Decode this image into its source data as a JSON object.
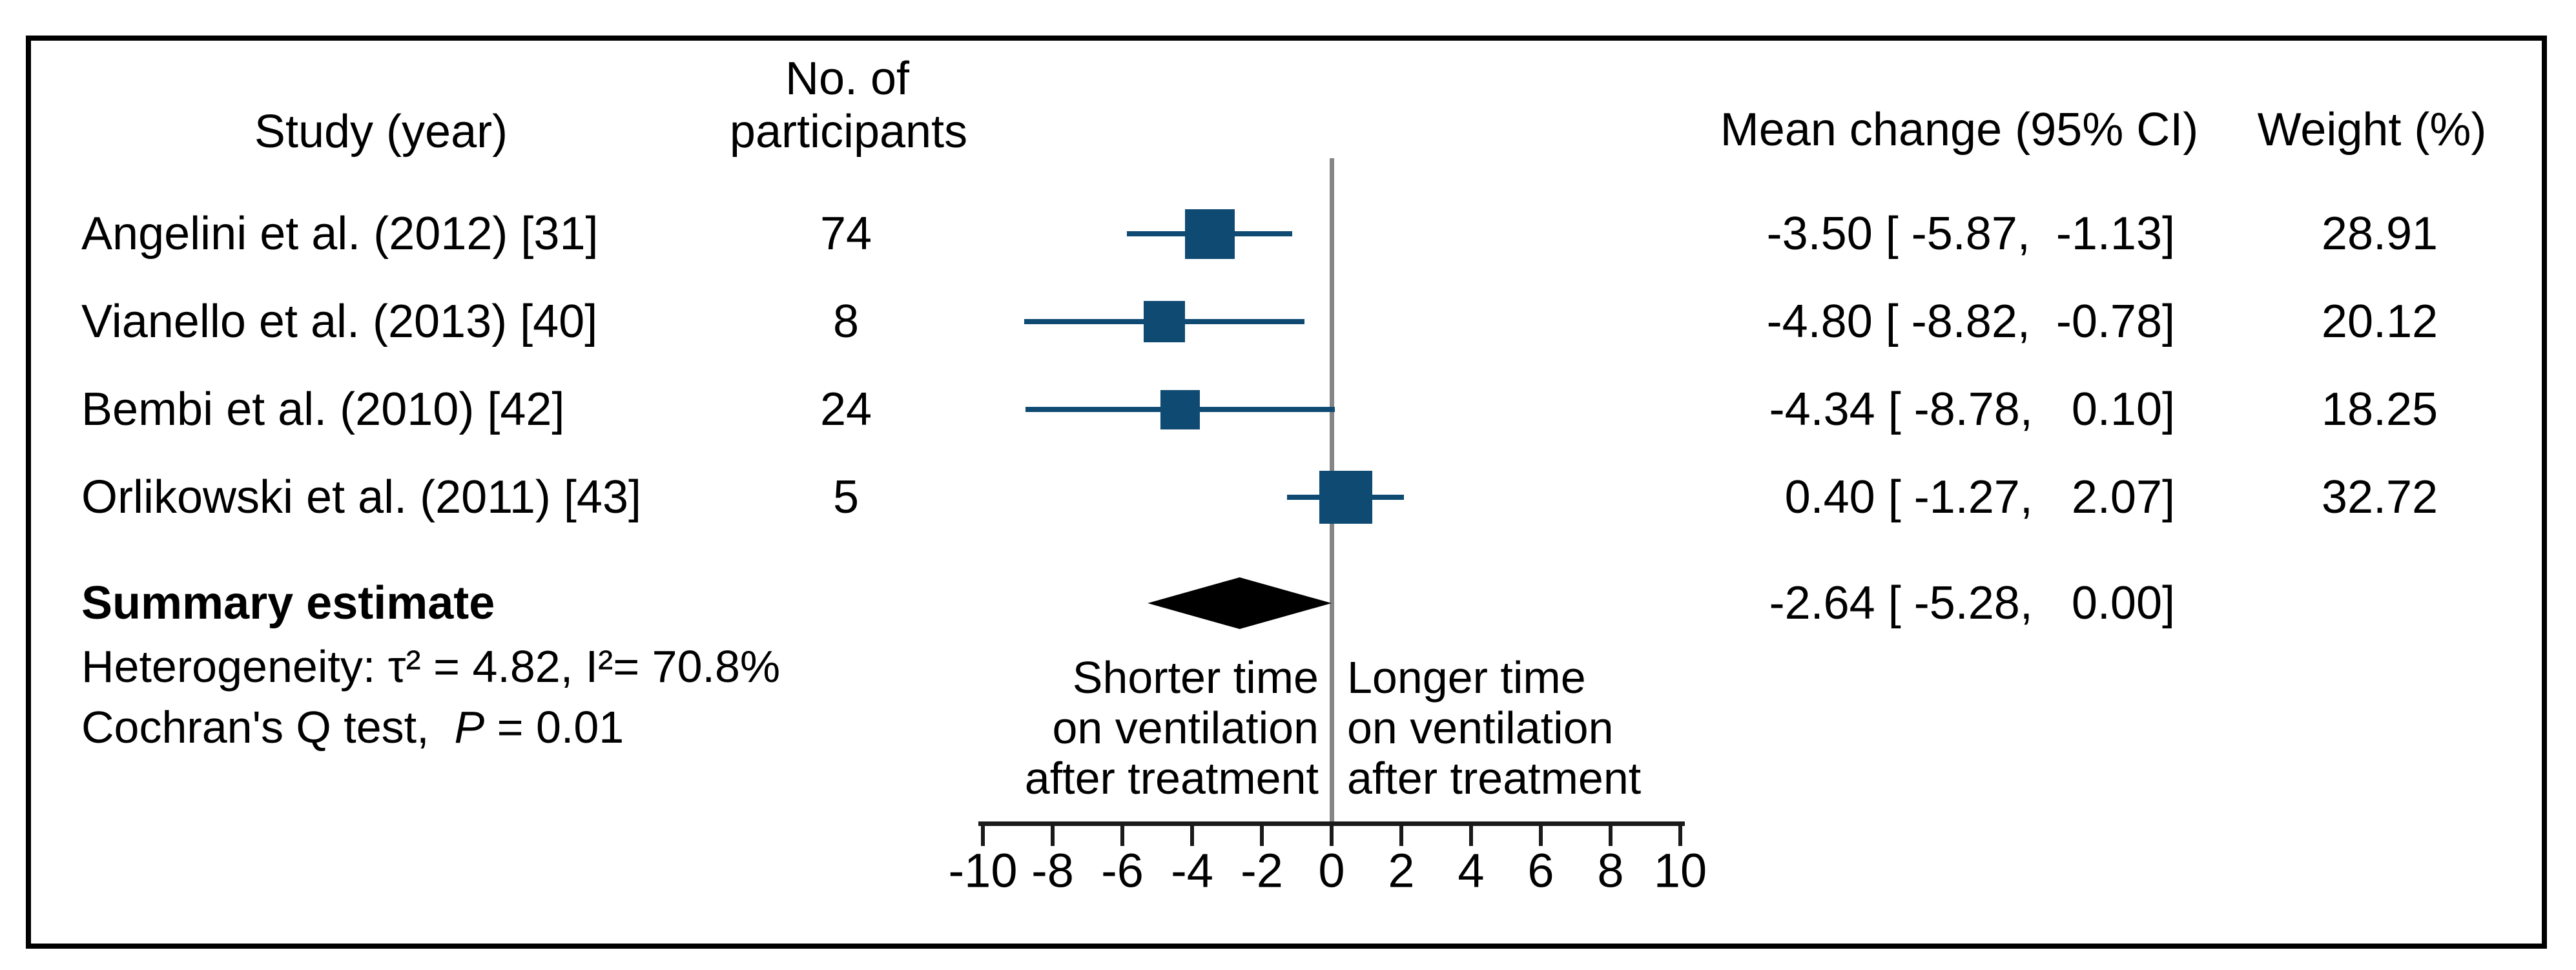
{
  "header": {
    "study": "Study (year)",
    "participants_line1": "No. of",
    "participants_line2": "participants",
    "mean_change": "Mean change (95% CI)",
    "weight": "Weight (%)"
  },
  "heterogeneity_text": "Heterogeneity: τ² = 4.82, I²= 70.8%",
  "cochran": {
    "prefix": "Cochran's Q test,  ",
    "p_label": "P",
    "value_text": " = 0.01"
  },
  "direction_labels": {
    "left": [
      "Shorter time",
      "on ventilation",
      "after treatment"
    ],
    "right": [
      "Longer time",
      "on ventilation",
      "after treatment"
    ]
  },
  "colors": {
    "square": "#0f4a73",
    "ci_line": "#0f4a73",
    "diamond": "#000000",
    "zero_line": "#868686",
    "axis": "#1a1a1a",
    "text": "#000000"
  },
  "chart_data": {
    "type": "forest",
    "xlim": [
      -10,
      10
    ],
    "ticks": [
      -10,
      -8,
      -6,
      -4,
      -2,
      0,
      2,
      4,
      6,
      8,
      10
    ],
    "zero_reference": 0,
    "studies": [
      {
        "label": "Angelini et al. (2012) [31]",
        "n": "74",
        "mean": -3.5,
        "ci_lower": -5.87,
        "ci_upper": -1.13,
        "weight_pct": 28.91,
        "mean_text": "-3.50 [ -5.87,  -1.13]",
        "weight_text": "28.91"
      },
      {
        "label": "Vianello et al. (2013) [40]",
        "n": "8",
        "mean": -4.8,
        "ci_lower": -8.82,
        "ci_upper": -0.78,
        "weight_pct": 20.12,
        "mean_text": "-4.80 [ -8.82,  -0.78]",
        "weight_text": "20.12"
      },
      {
        "label": "Bembi et al. (2010) [42]",
        "n": "24",
        "mean": -4.34,
        "ci_lower": -8.78,
        "ci_upper": 0.1,
        "weight_pct": 18.25,
        "mean_text": "-4.34 [ -8.78,   0.10]",
        "weight_text": "18.25"
      },
      {
        "label": "Orlikowski et al. (2011) [43]",
        "n": "5",
        "mean": 0.4,
        "ci_lower": -1.27,
        "ci_upper": 2.07,
        "weight_pct": 32.72,
        "mean_text": " 0.40 [ -1.27,   2.07]",
        "weight_text": "32.72"
      }
    ],
    "summary": {
      "label": "Summary estimate",
      "mean": -2.64,
      "ci_lower": -5.28,
      "ci_upper": 0.0,
      "mean_text": "-2.64 [ -5.28,   0.00]"
    },
    "heterogeneity": {
      "tau_squared": 4.82,
      "i_squared_pct": 70.8,
      "cochran_q_p": 0.01
    }
  }
}
